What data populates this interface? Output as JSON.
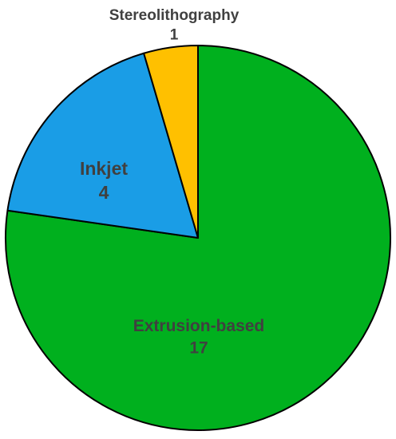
{
  "chart_data": {
    "type": "pie",
    "title": "",
    "slices": [
      {
        "label": "Extrusion-based",
        "value": 17,
        "color": "#00B01E"
      },
      {
        "label": "Inkjet",
        "value": 4,
        "color": "#1A9DE6"
      },
      {
        "label": "Stereolithography",
        "value": 1,
        "color": "#FFC000"
      }
    ],
    "start_angle": "top (12 o'clock)",
    "direction": "clockwise",
    "labels_show": [
      "name",
      "value"
    ],
    "slice_border_color": "#000000"
  }
}
